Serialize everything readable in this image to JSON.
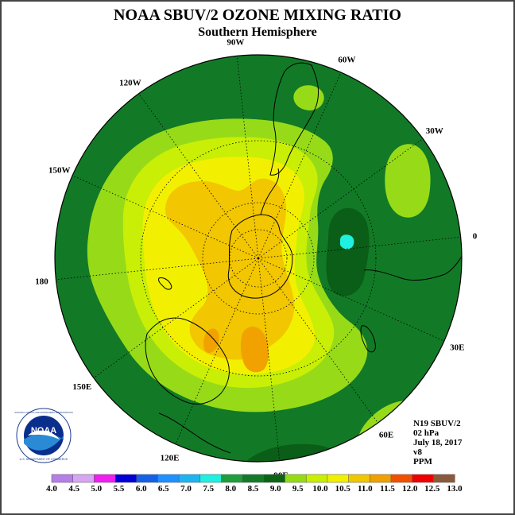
{
  "title": "NOAA SBUV/2 OZONE MIXING RATIO",
  "subtitle": "Southern Hemisphere",
  "longitude_labels": [
    {
      "text": "90W",
      "angle": 96
    },
    {
      "text": "60W",
      "angle": 66
    },
    {
      "text": "30W",
      "angle": 36
    },
    {
      "text": "0",
      "angle": 6
    },
    {
      "text": "30E",
      "angle": -24
    },
    {
      "text": "60E",
      "angle": -54
    },
    {
      "text": "90E",
      "angle": -84
    },
    {
      "text": "120E",
      "angle": -114
    },
    {
      "text": "150E",
      "angle": -144
    },
    {
      "text": "180",
      "angle": -174
    },
    {
      "text": "150W",
      "angle": 156
    },
    {
      "text": "120W",
      "angle": 126
    }
  ],
  "info": {
    "satellite": "N19 SBUV/2",
    "pressure": "02 hPa",
    "date": "July 18, 2017",
    "version": "v8",
    "units": "PPM"
  },
  "logo": {
    "name": "NOAA",
    "arc_text": "NATIONAL OCEANIC AND ATMOSPHERIC ADMINISTRATION",
    "bottom_text": "U.S. DEPARTMENT OF COMMERCE"
  },
  "colorbar": {
    "labels": [
      "4.0",
      "4.5",
      "5.0",
      "5.5",
      "6.0",
      "6.5",
      "7.0",
      "7.5",
      "8.0",
      "8.5",
      "9.0",
      "9.5",
      "10.0",
      "10.5",
      "11.0",
      "11.5",
      "12.0",
      "12.5",
      "13.0"
    ],
    "colors": [
      "#b77ee8",
      "#d7a6f2",
      "#f01ef0",
      "#0000d8",
      "#1460e6",
      "#1e90ff",
      "#1eb4f0",
      "#20f0e0",
      "#1e9e3c",
      "#147a28",
      "#0a6414",
      "#96dc14",
      "#c8f000",
      "#f0f000",
      "#f0c800",
      "#f0a000",
      "#f05000",
      "#f00000",
      "#8a5a3c"
    ]
  },
  "colors": {
    "background_field": "#127a26",
    "darker_patch": "#0a5e17",
    "level_9_5": "#97db18",
    "level_10": "#c8ef05",
    "level_10_5": "#f2f000",
    "level_11": "#f2c600",
    "level_11_5": "#f2a200",
    "cyan_patch": "#1ff0e0"
  }
}
